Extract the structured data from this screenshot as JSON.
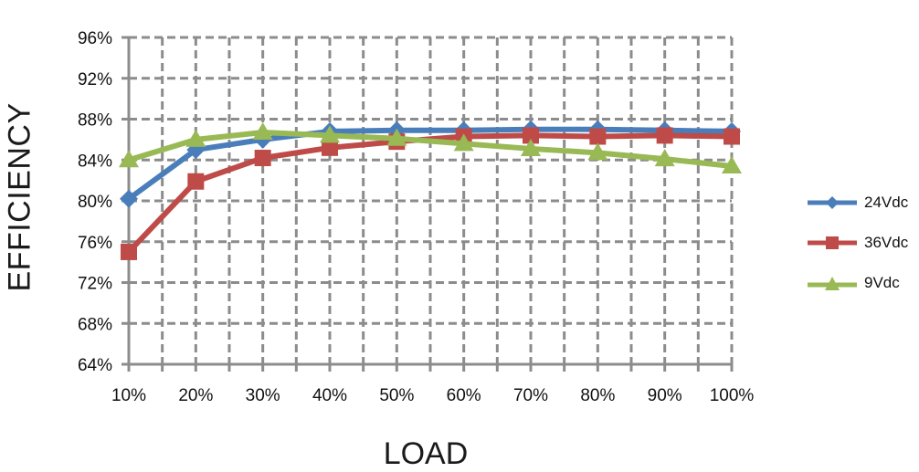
{
  "chart_data": {
    "type": "line",
    "title": "",
    "xlabel": "LOAD",
    "ylabel": "EFFICIENCY",
    "categories": [
      "10%",
      "20%",
      "30%",
      "40%",
      "50%",
      "60%",
      "70%",
      "80%",
      "90%",
      "100%"
    ],
    "y_ticks": [
      "64%",
      "68%",
      "72%",
      "76%",
      "80%",
      "84%",
      "88%",
      "92%",
      "96%"
    ],
    "ylim": [
      64,
      96
    ],
    "grid": true,
    "legend_position": "right",
    "series": [
      {
        "name": "24Vdc",
        "color": "#4a7ebb",
        "marker": "diamond",
        "values": [
          80.2,
          85.0,
          86.0,
          86.8,
          86.9,
          86.9,
          87.0,
          87.0,
          86.9,
          86.8
        ]
      },
      {
        "name": "36Vdc",
        "color": "#be4b48",
        "marker": "square",
        "values": [
          75.0,
          81.9,
          84.2,
          85.2,
          85.8,
          86.3,
          86.4,
          86.3,
          86.4,
          86.3
        ]
      },
      {
        "name": "9Vdc",
        "color": "#98b954",
        "marker": "triangle",
        "values": [
          84.0,
          86.0,
          86.7,
          86.4,
          86.1,
          85.6,
          85.1,
          84.7,
          84.1,
          83.4
        ]
      }
    ]
  }
}
